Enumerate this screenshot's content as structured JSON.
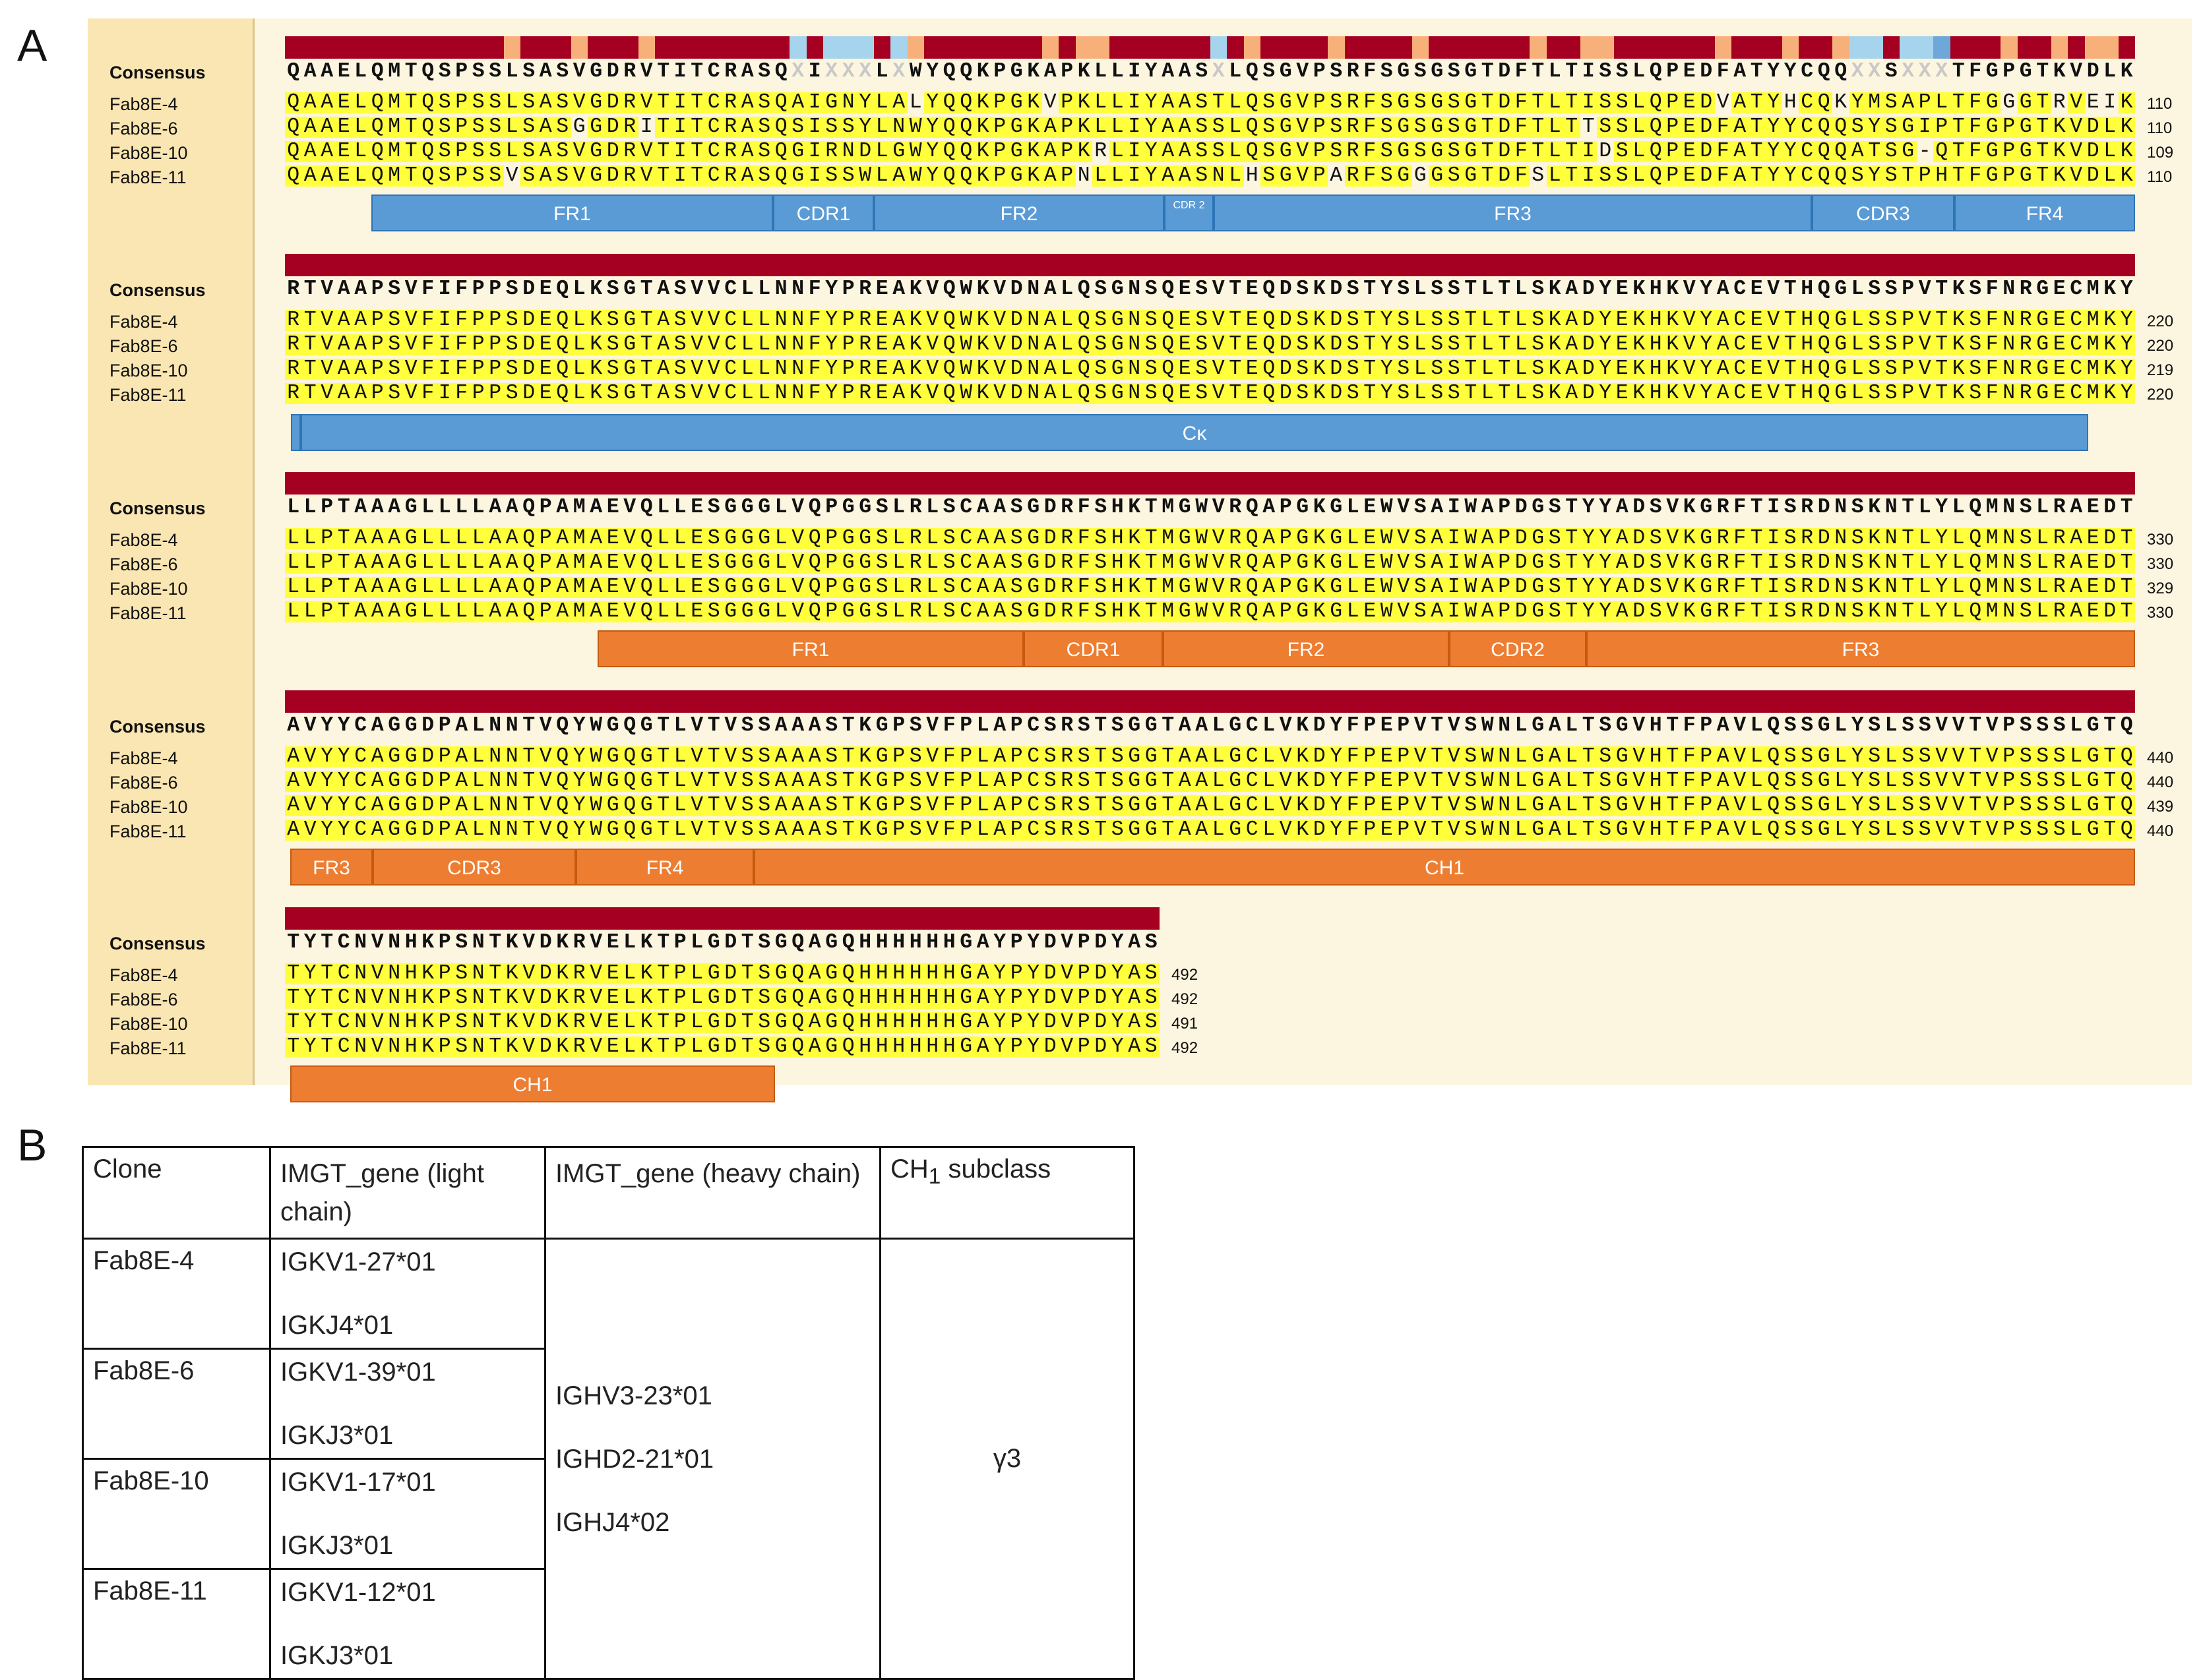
{
  "panels": {
    "a": "A",
    "b": "B"
  },
  "colors": {
    "identity_high": "#a50021",
    "identity_mid": "#f47a5c",
    "identity_low": "#f8b07a",
    "identity_gap": "#a6d4ec",
    "identity_var": "#6ea8d8",
    "highlight": "#ffff3b",
    "light_chain_region": "#5b9bd5",
    "heavy_chain_region": "#ed7d31"
  },
  "alignment": {
    "consensus_label": "Consensus",
    "blocks": [
      {
        "consensus": "QAAELQMTQSPSSLSASVGDRVTITCRASQ-I---L-WYQQKPGKAPKLLIYAAS-LQSGVPSRFSGSGSGTDFTLTISSLQPEDFATYYCQQ--S---TFGPGTKVDLK",
        "rows": [
          {
            "name": "Fab8E-4",
            "seq": "QAAELQMTQSPSSLSASVGDRVTITCRASQAIGNYLALYQQKPGKVPKLLIYAASTLQSGVPSRFSGSGSGTDFTLTISSLQPEDVATYHCQKYMSAPLTFGGGTRVEIK",
            "end": "110"
          },
          {
            "name": "Fab8E-6",
            "seq": "QAAELQMTQSPSSLSASGGDRITITCRASQSISSYLNWYQQKPGKAPKLLIYAASSLQSGVPSRFSGSGSGTDFTLTTSSLQPEDFATYYCQQSYSGIPTFGPGTKVDLK",
            "end": "110"
          },
          {
            "name": "Fab8E-10",
            "seq": "QAAELQMTQSPSSLSASVGDRVTITCRASQGIRNDLGWYQQKPGKAPKRLIYAASSLQSGVPSRFSGSGSGTDFTLTIDSLQPEDFATYYCQQATSG-QTFGPGTKVDLK",
            "end": "109"
          },
          {
            "name": "Fab8E-11",
            "seq": "QAAELQMTQSPSSVSASVGDRVTITCRASQGISSWLAWYQQKPGKAPNLLIYAASNLHSGVPARFSGGGSGTDFSLTISSLQPEDFATYYCQQSYSTPHTFGPGTKVDLK",
            "end": "110"
          }
        ],
        "regions": [
          {
            "label": "FR1"
          },
          {
            "label": "CDR1"
          },
          {
            "label": "FR2"
          },
          {
            "label": "CDR 2"
          },
          {
            "label": "FR3"
          },
          {
            "label": "CDR3"
          },
          {
            "label": "FR4"
          }
        ]
      },
      {
        "consensus": "RTVAAPSVFIFPPSDEQLKSGTASVVCLLNNFYPREAKVQWKVDNALQSGNSQESVTEQDSKDSTYSLSSTLTLSKADYEKHKVYACEVTHQGLSSPVTKSFNRGECMKY",
        "rows": [
          {
            "name": "Fab8E-4",
            "seq": "RTVAAPSVFIFPPSDEQLKSGTASVVCLLNNFYPREAKVQWKVDNALQSGNSQESVTEQDSKDSTYSLSSTLTLSKADYEKHKVYACEVTHQGLSSPVTKSFNRGECMKY",
            "end": "220"
          },
          {
            "name": "Fab8E-6",
            "seq": "RTVAAPSVFIFPPSDEQLKSGTASVVCLLNNFYPREAKVQWKVDNALQSGNSQESVTEQDSKDSTYSLSSTLTLSKADYEKHKVYACEVTHQGLSSPVTKSFNRGECMKY",
            "end": "220"
          },
          {
            "name": "Fab8E-10",
            "seq": "RTVAAPSVFIFPPSDEQLKSGTASVVCLLNNFYPREAKVQWKVDNALQSGNSQESVTEQDSKDSTYSLSSTLTLSKADYEKHKVYACEVTHQGLSSPVTKSFNRGECMKY",
            "end": "219"
          },
          {
            "name": "Fab8E-11",
            "seq": "RTVAAPSVFIFPPSDEQLKSGTASVVCLLNNFYPREAKVQWKVDNALQSGNSQESVTEQDSKDSTYSLSSTLTLSKADYEKHKVYACEVTHQGLSSPVTKSFNRGECMKY",
            "end": "220"
          }
        ],
        "regions": [
          {
            "label": ""
          },
          {
            "label": "Cκ"
          }
        ]
      },
      {
        "consensus": "LLPTAAAGLLLLAAQPAMAEVQLLESGGGLVQPGGSLRLSCAASGDRFSHKTMGWVRQAPGKGLEWVSAIWAPDGSTYYADSVKGRFTISRDNSKNTLYLQMNSLRAEDT",
        "rows": [
          {
            "name": "Fab8E-4",
            "seq": "LLPTAAAGLLLLAAQPAMAEVQLLESGGGLVQPGGSLRLSCAASGDRFSHKTMGWVRQAPGKGLEWVSAIWAPDGSTYYADSVKGRFTISRDNSKNTLYLQMNSLRAEDT",
            "end": "330"
          },
          {
            "name": "Fab8E-6",
            "seq": "LLPTAAAGLLLLAAQPAMAEVQLLESGGGLVQPGGSLRLSCAASGDRFSHKTMGWVRQAPGKGLEWVSAIWAPDGSTYYADSVKGRFTISRDNSKNTLYLQMNSLRAEDT",
            "end": "330"
          },
          {
            "name": "Fab8E-10",
            "seq": "LLPTAAAGLLLLAAQPAMAEVQLLESGGGLVQPGGSLRLSCAASGDRFSHKTMGWVRQAPGKGLEWVSAIWAPDGSTYYADSVKGRFTISRDNSKNTLYLQMNSLRAEDT",
            "end": "329"
          },
          {
            "name": "Fab8E-11",
            "seq": "LLPTAAAGLLLLAAQPAMAEVQLLESGGGLVQPGGSLRLSCAASGDRFSHKTMGWVRQAPGKGLEWVSAIWAPDGSTYYADSVKGRFTISRDNSKNTLYLQMNSLRAEDT",
            "end": "330"
          }
        ],
        "regions": [
          {
            "label": "FR1"
          },
          {
            "label": "CDR1"
          },
          {
            "label": "FR2"
          },
          {
            "label": "CDR2"
          },
          {
            "label": "FR3"
          }
        ]
      },
      {
        "consensus": "AVYYCAGGDPALNNTVQYWGQGTLVTVSSAAASTKGPSVFPLAPCSRSTSGGTAALGCLVKDYFPEPVTVSWNLGALTSGVHTFPAVLQSSGLYSLSSVVTVPSSSLGTQ",
        "rows": [
          {
            "name": "Fab8E-4",
            "seq": "AVYYCAGGDPALNNTVQYWGQGTLVTVSSAAASTKGPSVFPLAPCSRSTSGGTAALGCLVKDYFPEPVTVSWNLGALTSGVHTFPAVLQSSGLYSLSSVVTVPSSSLGTQ",
            "end": "440"
          },
          {
            "name": "Fab8E-6",
            "seq": "AVYYCAGGDPALNNTVQYWGQGTLVTVSSAAASTKGPSVFPLAPCSRSTSGGTAALGCLVKDYFPEPVTVSWNLGALTSGVHTFPAVLQSSGLYSLSSVVTVPSSSLGTQ",
            "end": "440"
          },
          {
            "name": "Fab8E-10",
            "seq": "AVYYCAGGDPALNNTVQYWGQGTLVTVSSAAASTKGPSVFPLAPCSRSTSGGTAALGCLVKDYFPEPVTVSWNLGALTSGVHTFPAVLQSSGLYSLSSVVTVPSSSLGTQ",
            "end": "439"
          },
          {
            "name": "Fab8E-11",
            "seq": "AVYYCAGGDPALNNTVQYWGQGTLVTVSSAAASTKGPSVFPLAPCSRSTSGGTAALGCLVKDYFPEPVTVSWNLGALTSGVHTFPAVLQSSGLYSLSSVVTVPSSSLGTQ",
            "end": "440"
          }
        ],
        "regions": [
          {
            "label": "FR3"
          },
          {
            "label": "CDR3"
          },
          {
            "label": "FR4"
          },
          {
            "label": "CH1"
          }
        ]
      },
      {
        "consensus": "TYTCNVNHKPSNTKVDKRVELKTPLGDTSGQAGQHHHHHHGAYPYDVPDYAS",
        "rows": [
          {
            "name": "Fab8E-4",
            "seq": "TYTCNVNHKPSNTKVDKRVELKTPLGDTSGQAGQHHHHHHGAYPYDVPDYAS",
            "end": "492"
          },
          {
            "name": "Fab8E-6",
            "seq": "TYTCNVNHKPSNTKVDKRVELKTPLGDTSGQAGQHHHHHHGAYPYDVPDYAS",
            "end": "492"
          },
          {
            "name": "Fab8E-10",
            "seq": "TYTCNVNHKPSNTKVDKRVELKTPLGDTSGQAGQHHHHHHGAYPYDVPDYAS",
            "end": "491"
          },
          {
            "name": "Fab8E-11",
            "seq": "TYTCNVNHKPSNTKVDKRVELKTPLGDTSGQAGQHHHHHHGAYPYDVPDYAS",
            "end": "492"
          }
        ],
        "regions": [
          {
            "label": "CH1"
          }
        ]
      }
    ]
  },
  "table": {
    "headers": {
      "clone": "Clone",
      "light": "IMGT_gene (light chain)",
      "heavy": "IMGT_gene (heavy chain)",
      "ch1_main": "CH",
      "ch1_sub": "1",
      "ch1_rest": " subclass"
    },
    "rows": [
      {
        "clone": "Fab8E-4",
        "v": "IGKV1-27*01",
        "j": "IGKJ4*01"
      },
      {
        "clone": "Fab8E-6",
        "v": "IGKV1-39*01",
        "j": "IGKJ3*01"
      },
      {
        "clone": "Fab8E-10",
        "v": "IGKV1-17*01",
        "j": "IGKJ3*01"
      },
      {
        "clone": "Fab8E-11",
        "v": "IGKV1-12*01",
        "j": "IGKJ3*01"
      }
    ],
    "heavy_genes": [
      "IGHV3-23*01",
      "IGHD2-21*01",
      "IGHJ4*02"
    ],
    "subclass": "γ3"
  }
}
